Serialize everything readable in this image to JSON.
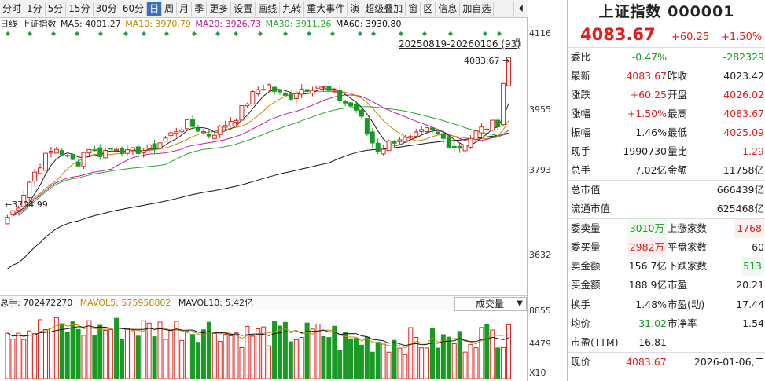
{
  "toolbar": {
    "items": [
      "分时",
      "1分",
      "5分",
      "15分",
      "30分",
      "60分",
      "日",
      "周",
      "月",
      "季",
      "更多",
      "设置",
      "画线",
      "九转",
      "重大事件",
      "演",
      "超级叠加",
      "窗",
      "区",
      "信息",
      "加自选"
    ],
    "active_index": 6,
    "collapse_icon": "⏴"
  },
  "legend": {
    "period": "日线",
    "name": "上证指数",
    "ma5": "MA5: 4001.27",
    "ma10": "MA10: 3970.79",
    "ma20": "MA20: 3926.73",
    "ma30": "MA30: 3911.26",
    "ma60": "MA60: 3930.80",
    "range": "20250819-20260106 (93)",
    "lock_icon": "lock-icon"
  },
  "chart_data": {
    "type": "candlestick",
    "ylim": [
      3560,
      4140
    ],
    "yticks": [
      "4116",
      "3955",
      "3793",
      "3632"
    ],
    "high_label": "4083.67",
    "low_label": "3704.99",
    "volume": {
      "ylim": [
        0,
        9500
      ],
      "yticks": [
        "8855",
        "4479"
      ],
      "unit": "X10"
    }
  },
  "volume_header": {
    "total": "总手: 702472270",
    "mavol5": "MAVOL5: 575958802",
    "mavol10": "MAVOL10: 5.42亿",
    "selector": "成交量",
    "caret": "▼"
  },
  "quote": {
    "title": "上证指数 000001",
    "price": "4083.67",
    "change": "+60.25",
    "change_pct": "+1.50%",
    "rows": [
      {
        "l1": "委比",
        "v1": "-0.47%",
        "c1": "green",
        "l2": "",
        "v2": "-282329",
        "c2": "green"
      },
      {
        "l1": "最新",
        "v1": "4083.67",
        "c1": "red",
        "l2": "昨收",
        "v2": "4023.42",
        "c2": "dark"
      },
      {
        "l1": "涨跌",
        "v1": "+60.25",
        "c1": "red",
        "l2": "开盘",
        "v2": "4026.02",
        "c2": "red"
      },
      {
        "l1": "涨幅",
        "v1": "+1.50%",
        "c1": "red",
        "l2": "最高",
        "v2": "4083.67",
        "c2": "red"
      },
      {
        "l1": "振幅",
        "v1": "1.46%",
        "c1": "dark",
        "l2": "最低",
        "v2": "4025.09",
        "c2": "red"
      },
      {
        "l1": "现手",
        "v1": "1990730",
        "c1": "dark",
        "l2": "量比",
        "v2": "1.29",
        "c2": "red"
      },
      {
        "l1": "总手",
        "v1": "7.02亿",
        "c1": "dark",
        "l2": "金额",
        "v2": "11758亿",
        "c2": "dark"
      }
    ],
    "market_rows": [
      {
        "l1": "总市值",
        "v1": "666439亿"
      },
      {
        "l1": "流通市值",
        "v1": "625468亿"
      }
    ],
    "breadth_rows": [
      {
        "l1": "委卖量",
        "v1": "3010万",
        "c1": "green",
        "bg1": "bggreen",
        "l2": "上涨家数",
        "v2": "1768",
        "c2": "red",
        "bg2": "bgred"
      },
      {
        "l1": "委买量",
        "v1": "2982万",
        "c1": "red",
        "bg1": "bgred",
        "l2": "平盘家数",
        "v2": "60",
        "c2": "dark",
        "bg2": ""
      },
      {
        "l1": "卖金额",
        "v1": "156.7亿",
        "c1": "dark",
        "bg1": "",
        "l2": "下跌家数",
        "v2": "513",
        "c2": "green",
        "bg2": "bggreen"
      },
      {
        "l1": "买金额",
        "v1": "188.9亿",
        "c1": "dark",
        "bg1": "",
        "l2": "市盈",
        "v2": "20.21",
        "c2": "dark",
        "bg2": ""
      }
    ],
    "ratio_rows": [
      {
        "l1": "换手",
        "v1": "1.48%",
        "c1": "dark",
        "l2": "市盈(动)",
        "v2": "17.44",
        "c2": "dark"
      },
      {
        "l1": "均价",
        "v1": "31.02",
        "c1": "green",
        "l2": "市净率",
        "v2": "1.54",
        "c2": "dark"
      },
      {
        "l1": "市盈(TTM)",
        "v1": "16.81",
        "c1": "dark",
        "l2": "",
        "v2": "",
        "c2": "dark"
      }
    ],
    "footer": {
      "label": "现价",
      "price": "4083.67",
      "datetime": "2026-01-06,二"
    }
  },
  "colors": {
    "up": "#e0201c",
    "down": "#1a9a24",
    "ma5": "#222222",
    "ma10": "#c28a00",
    "ma20": "#c218a6",
    "ma30": "#2aa82a",
    "ma60": "#111111",
    "diamond": "#2a9a4a"
  }
}
